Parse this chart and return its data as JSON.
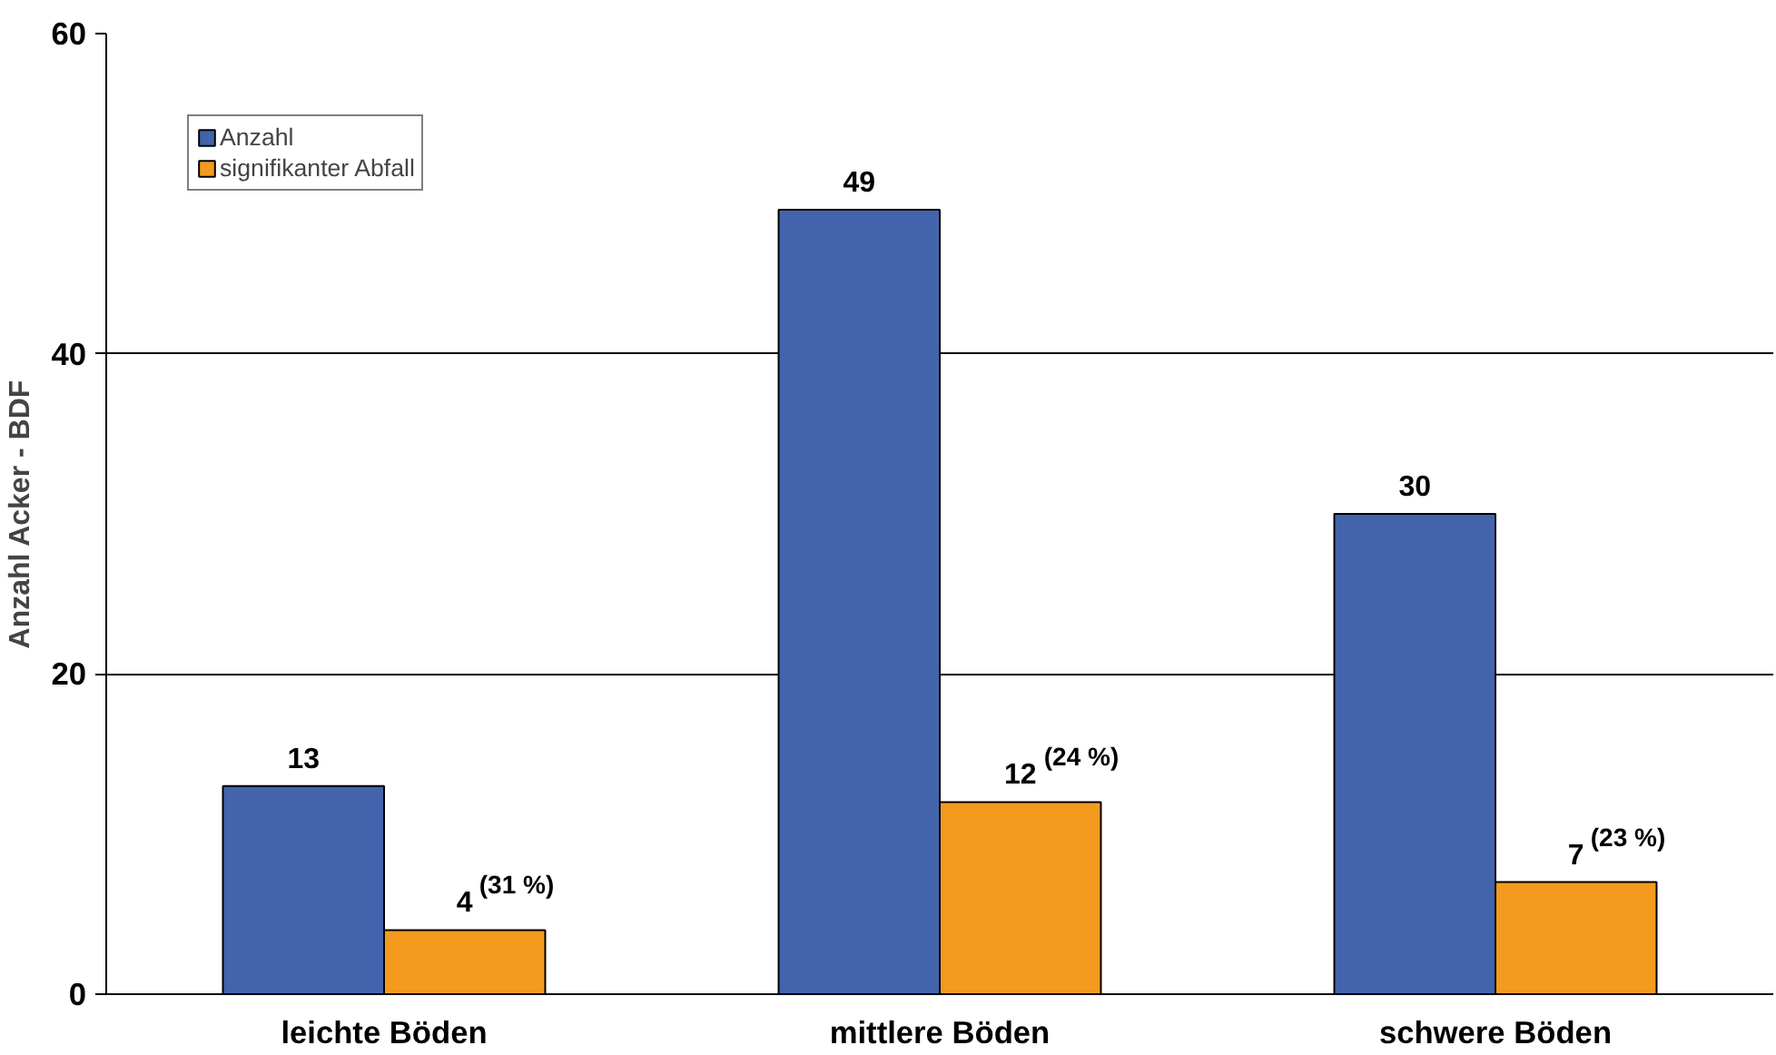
{
  "chart_data": {
    "type": "bar",
    "ylabel": "Anzahl Acker - BDF",
    "categories": [
      "leichte Böden",
      "mittlere Böden",
      "schwere Böden"
    ],
    "series": [
      {
        "name": "Anzahl",
        "color": "#4363ad",
        "values": [
          13,
          49,
          30
        ],
        "value_labels": [
          "13",
          "49",
          "30"
        ]
      },
      {
        "name": "signifikanter Abfall",
        "color": "#f39a1f",
        "values": [
          4,
          12,
          7
        ],
        "value_labels": [
          "4 $^{(31 %)}$",
          "12 $^{(24 %)}$",
          "7 $^{(23 %)}$"
        ]
      }
    ],
    "ylim": [
      0,
      60
    ],
    "yticks": [
      0,
      20,
      40,
      60
    ],
    "grid": "y",
    "legend": "top left"
  }
}
